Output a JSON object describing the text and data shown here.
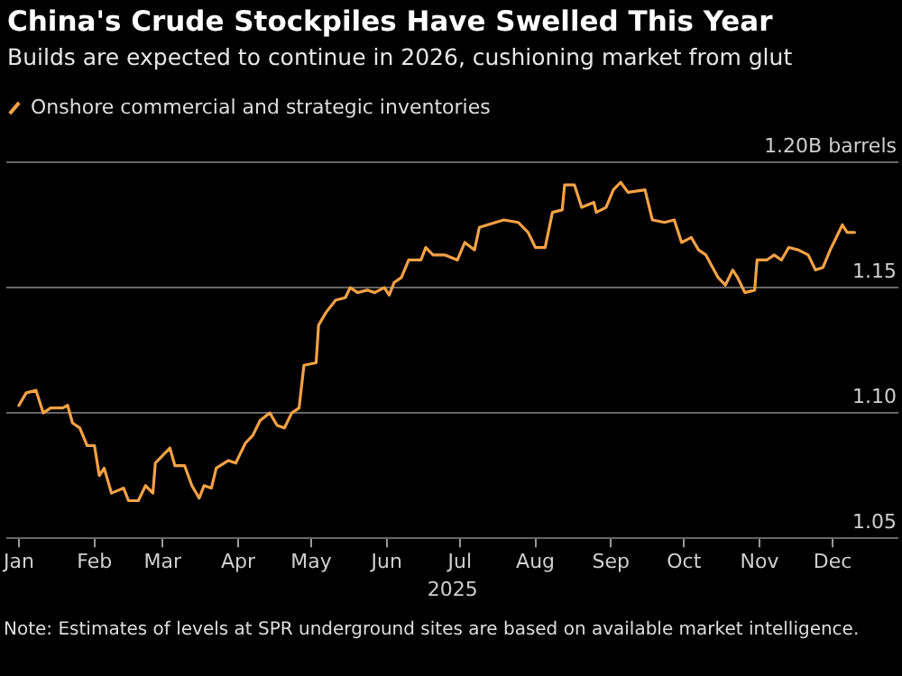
{
  "chart_data": {
    "type": "line",
    "title": "China's Crude Stockpiles Have Swelled This Year",
    "subtitle": "Builds are expected to continue in 2026, cushioning market from glut",
    "xlabel": "2025",
    "annotations": [
      "Note: Estimates of levels at SPR underground sites are based on available market intelligence."
    ],
    "legend": "top left",
    "grid": "y",
    "marker": "none",
    "line_style": "solid",
    "xlim": [
      "2024-12-27",
      "2025-12-28"
    ],
    "xticks": [
      {
        "value": "2025-01-01",
        "label": "Jan"
      },
      {
        "value": "2025-02-01",
        "label": "Feb"
      },
      {
        "value": "2025-03-01",
        "label": "Mar"
      },
      {
        "value": "2025-04-01",
        "label": "Apr"
      },
      {
        "value": "2025-05-01",
        "label": "May"
      },
      {
        "value": "2025-06-01",
        "label": "Jun"
      },
      {
        "value": "2025-07-01",
        "label": "Jul"
      },
      {
        "value": "2025-08-01",
        "label": "Aug"
      },
      {
        "value": "2025-09-01",
        "label": "Sep"
      },
      {
        "value": "2025-10-01",
        "label": "Oct"
      },
      {
        "value": "2025-11-01",
        "label": "Nov"
      },
      {
        "value": "2025-12-01",
        "label": "Dec"
      }
    ],
    "ylim": [
      1.05,
      1.2
    ],
    "yticks": [
      {
        "value": 1.05,
        "label": "1.05"
      },
      {
        "value": 1.1,
        "label": "1.10"
      },
      {
        "value": 1.15,
        "label": "1.15"
      },
      {
        "value": 1.2,
        "label": "1.20B barrels"
      }
    ],
    "x": [
      "2025-01-01",
      "2025-01-04",
      "2025-01-08",
      "2025-01-11",
      "2025-01-14",
      "2025-01-19",
      "2025-01-21",
      "2025-01-23",
      "2025-01-26",
      "2025-01-29",
      "2025-02-01",
      "2025-02-03",
      "2025-02-05",
      "2025-02-08",
      "2025-02-13",
      "2025-02-15",
      "2025-02-19",
      "2025-02-22",
      "2025-02-25",
      "2025-02-26",
      "2025-03-01",
      "2025-03-04",
      "2025-03-06",
      "2025-03-10",
      "2025-03-13",
      "2025-03-16",
      "2025-03-18",
      "2025-03-21",
      "2025-03-23",
      "2025-03-28",
      "2025-03-31",
      "2025-04-04",
      "2025-04-07",
      "2025-04-10",
      "2025-04-14",
      "2025-04-17",
      "2025-04-20",
      "2025-04-23",
      "2025-04-26",
      "2025-04-28",
      "2025-05-03",
      "2025-05-04",
      "2025-05-07",
      "2025-05-11",
      "2025-05-15",
      "2025-05-17",
      "2025-05-20",
      "2025-05-24",
      "2025-05-27",
      "2025-05-31",
      "2025-06-02",
      "2025-06-04",
      "2025-06-07",
      "2025-06-10",
      "2025-06-15",
      "2025-06-17",
      "2025-06-20",
      "2025-06-25",
      "2025-06-30",
      "2025-07-03",
      "2025-07-07",
      "2025-07-09",
      "2025-07-19",
      "2025-07-25",
      "2025-07-29",
      "2025-08-01",
      "2025-08-05",
      "2025-08-08",
      "2025-08-12",
      "2025-08-13",
      "2025-08-17",
      "2025-08-20",
      "2025-08-25",
      "2025-08-26",
      "2025-08-30",
      "2025-09-02",
      "2025-09-05",
      "2025-09-08",
      "2025-09-15",
      "2025-09-18",
      "2025-09-23",
      "2025-09-27",
      "2025-09-30",
      "2025-10-04",
      "2025-10-07",
      "2025-10-10",
      "2025-10-15",
      "2025-10-18",
      "2025-10-21",
      "2025-10-23",
      "2025-10-26",
      "2025-10-30",
      "2025-10-31",
      "2025-11-04",
      "2025-11-07",
      "2025-11-10",
      "2025-11-13",
      "2025-11-17",
      "2025-11-21",
      "2025-11-24",
      "2025-11-27",
      "2025-11-30",
      "2025-12-02",
      "2025-12-05",
      "2025-12-07",
      "2025-12-10"
    ],
    "series": [
      {
        "name": "Onshore commercial and strategic inventories",
        "color": "#f5a145",
        "values": [
          1.103,
          1.108,
          1.109,
          1.1,
          1.102,
          1.102,
          1.103,
          1.096,
          1.094,
          1.087,
          1.087,
          1.075,
          1.078,
          1.068,
          1.07,
          1.065,
          1.065,
          1.071,
          1.068,
          1.08,
          1.083,
          1.086,
          1.079,
          1.079,
          1.071,
          1.066,
          1.071,
          1.07,
          1.078,
          1.081,
          1.08,
          1.088,
          1.091,
          1.097,
          1.1,
          1.095,
          1.094,
          1.1,
          1.102,
          1.119,
          1.12,
          1.135,
          1.14,
          1.145,
          1.146,
          1.15,
          1.148,
          1.149,
          1.148,
          1.15,
          1.147,
          1.152,
          1.154,
          1.161,
          1.161,
          1.166,
          1.163,
          1.163,
          1.161,
          1.168,
          1.165,
          1.174,
          1.177,
          1.176,
          1.172,
          1.166,
          1.166,
          1.18,
          1.181,
          1.191,
          1.191,
          1.182,
          1.184,
          1.18,
          1.182,
          1.189,
          1.192,
          1.188,
          1.189,
          1.177,
          1.176,
          1.177,
          1.168,
          1.17,
          1.165,
          1.163,
          1.154,
          1.151,
          1.157,
          1.154,
          1.148,
          1.149,
          1.161,
          1.161,
          1.163,
          1.161,
          1.166,
          1.165,
          1.163,
          1.157,
          1.158,
          1.165,
          1.169,
          1.175,
          1.172,
          1.172
        ]
      }
    ]
  }
}
